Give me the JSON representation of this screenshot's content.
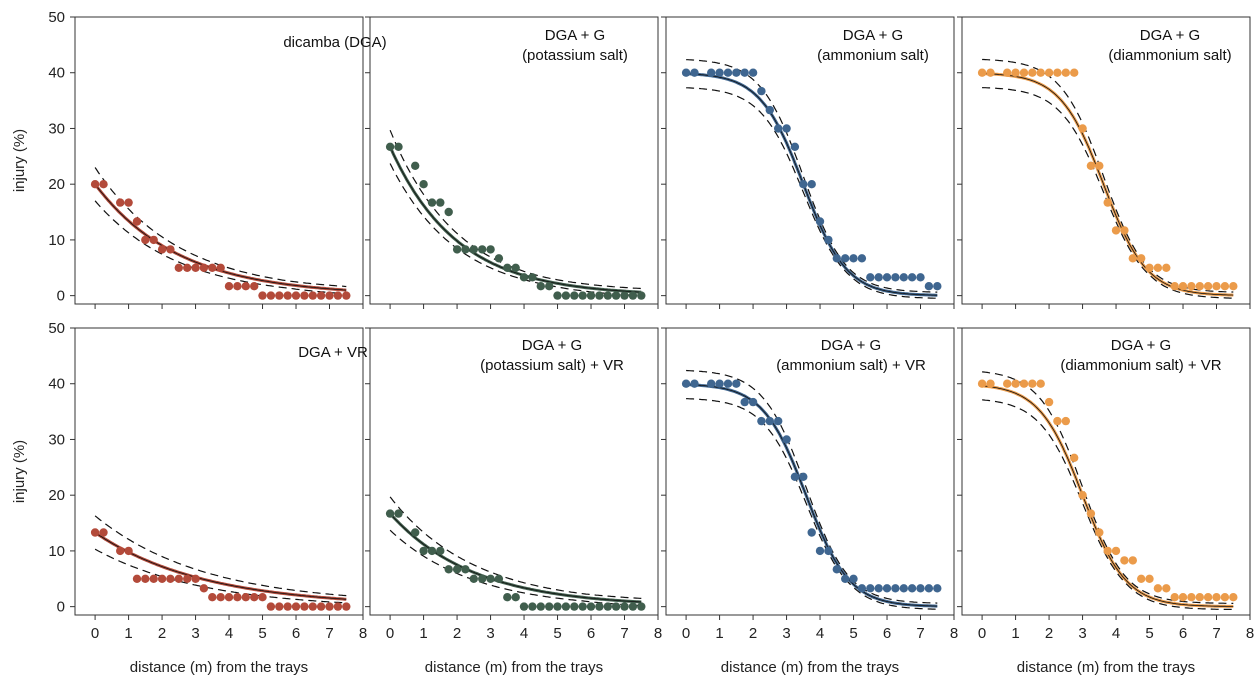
{
  "chart_data": {
    "type": "scatter",
    "layout": "grid 2 rows x 4 columns, shared axes",
    "x_axis": {
      "label": "distance (m) from the trays",
      "range": [
        -0.6,
        8
      ],
      "ticks": [
        0,
        1,
        2,
        3,
        4,
        5,
        6,
        7,
        8
      ]
    },
    "y_axis": {
      "label": "injury (%)",
      "range": [
        -1.5,
        50
      ],
      "ticks": [
        0,
        10,
        20,
        30,
        40,
        50
      ]
    },
    "x": [
      0,
      0.25,
      0.75,
      1,
      1.25,
      1.5,
      1.75,
      2,
      2.25,
      2.5,
      2.75,
      3,
      3.25,
      3.5,
      3.75,
      4,
      4.25,
      4.5,
      4.75,
      5,
      5.25,
      5.5,
      5.75,
      6,
      6.25,
      6.5,
      6.75,
      7,
      7.25,
      7.5
    ],
    "grid": false,
    "colors": {
      "red": "#b34a3a",
      "green": "#405e4d",
      "blue": "#3f6690",
      "orange": "#eb9b4a",
      "line": "#111111"
    },
    "panels": [
      {
        "title": [
          "dicamba (DGA)"
        ],
        "color": "#b34a3a",
        "curve": "exp",
        "y": [
          20,
          20,
          16.7,
          16.7,
          13.3,
          10,
          10,
          8.3,
          8.3,
          5,
          5,
          5,
          5,
          5,
          5,
          1.7,
          1.7,
          1.7,
          1.7,
          0,
          0,
          0,
          0,
          0,
          0,
          0,
          0,
          0,
          0,
          0
        ]
      },
      {
        "title": [
          "DGA + G",
          "(potassium salt)"
        ],
        "color": "#405e4d",
        "curve": "exp",
        "y": [
          26.7,
          26.7,
          23.3,
          20,
          16.7,
          16.7,
          15,
          8.3,
          8.3,
          8.3,
          8.3,
          8.3,
          6.7,
          5,
          5,
          3.3,
          3.3,
          1.7,
          1.7,
          0,
          0,
          0,
          0,
          0,
          0,
          0,
          0,
          0,
          0,
          0
        ]
      },
      {
        "title": [
          "DGA + G",
          "(ammonium salt)"
        ],
        "color": "#3f6690",
        "curve": "logistic",
        "y": [
          40,
          40,
          40,
          40,
          40,
          40,
          40,
          40,
          36.7,
          33.3,
          30,
          30,
          26.7,
          20,
          20,
          13.3,
          10,
          6.7,
          6.7,
          6.7,
          6.7,
          3.3,
          3.3,
          3.3,
          3.3,
          3.3,
          3.3,
          3.3,
          1.7,
          1.7
        ]
      },
      {
        "title": [
          "DGA + G",
          "(diammonium salt)"
        ],
        "color": "#eb9b4a",
        "curve": "logistic",
        "y": [
          40,
          40,
          40,
          40,
          40,
          40,
          40,
          40,
          40,
          40,
          40,
          30,
          23.3,
          23.3,
          16.7,
          11.7,
          11.7,
          6.7,
          6.7,
          5,
          5,
          5,
          1.7,
          1.7,
          1.7,
          1.7,
          1.7,
          1.7,
          1.7,
          1.7
        ]
      },
      {
        "title": [
          "DGA + VR"
        ],
        "color": "#b34a3a",
        "curve": "exp",
        "y": [
          13.3,
          13.3,
          10,
          10,
          5,
          5,
          5,
          5,
          5,
          5,
          5,
          5,
          3.3,
          1.7,
          1.7,
          1.7,
          1.7,
          1.7,
          1.7,
          1.7,
          0,
          0,
          0,
          0,
          0,
          0,
          0,
          0,
          0,
          0
        ]
      },
      {
        "title": [
          "DGA + G",
          "(potassium salt) + VR"
        ],
        "color": "#405e4d",
        "curve": "exp",
        "y": [
          16.7,
          16.7,
          13.3,
          10,
          10,
          10,
          6.7,
          6.7,
          6.7,
          5,
          5,
          5,
          5,
          1.7,
          1.7,
          0,
          0,
          0,
          0,
          0,
          0,
          0,
          0,
          0,
          0,
          0,
          0,
          0,
          0,
          0
        ]
      },
      {
        "title": [
          "DGA + G",
          "(ammonium salt) + VR"
        ],
        "color": "#3f6690",
        "curve": "logistic",
        "y": [
          40,
          40,
          40,
          40,
          40,
          40,
          36.7,
          36.7,
          33.3,
          33.3,
          33.3,
          30,
          23.3,
          23.3,
          13.3,
          10,
          10,
          6.7,
          5,
          5,
          3.3,
          3.3,
          3.3,
          3.3,
          3.3,
          3.3,
          3.3,
          3.3,
          3.3,
          3.3
        ]
      },
      {
        "title": [
          "DGA + G",
          "(diammonium salt) + VR"
        ],
        "color": "#eb9b4a",
        "curve": "logistic",
        "y": [
          40,
          40,
          40,
          40,
          40,
          40,
          40,
          36.7,
          33.3,
          33.3,
          26.7,
          20,
          16.7,
          13.3,
          10,
          10,
          8.3,
          8.3,
          5,
          5,
          3.3,
          3.3,
          1.7,
          1.7,
          1.7,
          1.7,
          1.7,
          1.7,
          1.7,
          1.7
        ]
      }
    ]
  }
}
